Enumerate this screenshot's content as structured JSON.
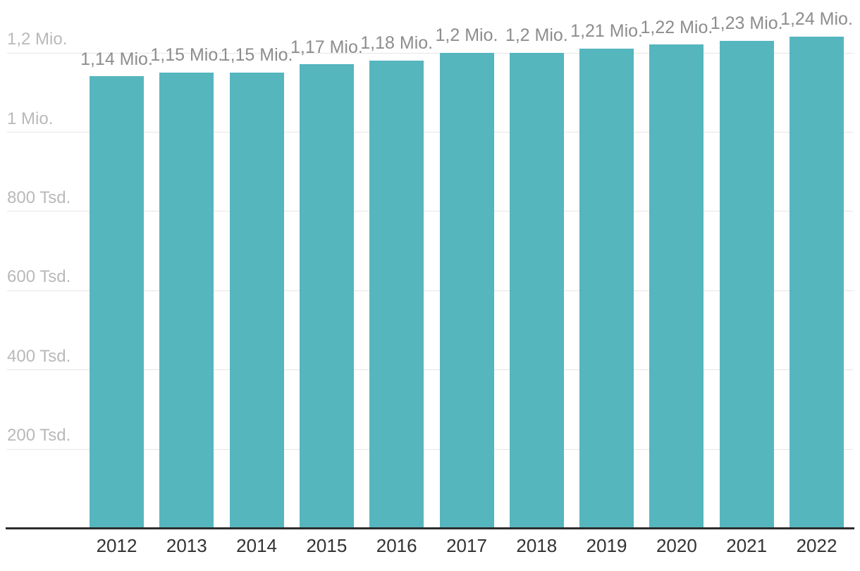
{
  "chart": {
    "background_color": "#ffffff",
    "bar_color": "#55b6be",
    "grid_color": "#e6e6e6",
    "axis_line_color": "#2d2d2d",
    "y_label_color": "#b9b9b9",
    "value_label_color": "#8d8d8d",
    "x_label_color": "#333333"
  },
  "chart_data": {
    "type": "bar",
    "title": "",
    "xlabel": "",
    "ylabel": "",
    "categories": [
      "2012",
      "2013",
      "2014",
      "2015",
      "2016",
      "2017",
      "2018",
      "2019",
      "2020",
      "2021",
      "2022"
    ],
    "values_mio": [
      1.14,
      1.15,
      1.15,
      1.17,
      1.18,
      1.2,
      1.2,
      1.21,
      1.22,
      1.23,
      1.24
    ],
    "value_labels": [
      "1,14 Mio.",
      "1,15 Mio.",
      "1,15 Mio.",
      "1,17 Mio.",
      "1,18 Mio.",
      "1,2 Mio.",
      "1,2 Mio.",
      "1,21 Mio.",
      "1,22 Mio.",
      "1,23 Mio.",
      "1,24 Mio."
    ],
    "unit": "Mio.",
    "y_ticks": [
      {
        "label": "1,2 Mio.",
        "value": 1.2
      },
      {
        "label": "1 Mio.",
        "value": 1.0
      },
      {
        "label": "800 Tsd.",
        "value": 0.8
      },
      {
        "label": "600 Tsd.",
        "value": 0.6
      },
      {
        "label": "400 Tsd.",
        "value": 0.4
      },
      {
        "label": "200 Tsd.",
        "value": 0.2
      }
    ],
    "ylim": [
      0,
      1.3
    ],
    "grid": true,
    "legend_position": "none"
  }
}
